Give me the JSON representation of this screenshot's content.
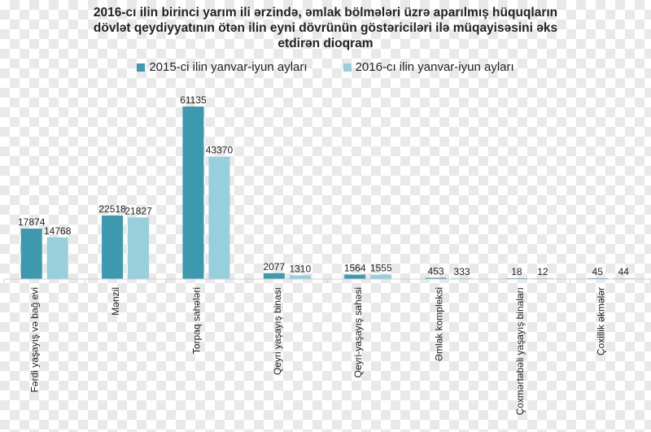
{
  "title_lines": [
    "2016-cı ilin birinci yarım ili ərzində, əmlak bölmələri üzrə aparılmış hüquqların",
    "dövlət qeydiyyatının ötən ilin eyni dövrünün göstəriciləri ilə müqayisəsini əks",
    "etdirən dioqram"
  ],
  "chart_data": {
    "type": "bar",
    "title": "2016-cı ilin birinci yarım ili ərzində, əmlak bölmələri üzrə aparılmış hüquqların dövlət qeydiyyatının ötən ilin eyni dövrünün göstəriciləri ilə müqayisəsini əks etdirən dioqram",
    "categories": [
      "Fərdi yaşayış və bağ evi",
      "Mənzil",
      "Torpaq sahələri",
      "Qeyri yaşayış binası",
      "Qeyri-yaşayış sahəsi",
      "Əmlak kompleksi",
      "Çoxmərtəbəli yaşayış binaları",
      "Çoxillik əkmələr"
    ],
    "series": [
      {
        "name": "2015-ci ilin yanvar-iyun ayları",
        "color": "#3d9aae",
        "values": [
          17874,
          22518,
          61135,
          2077,
          1564,
          453,
          18,
          45
        ]
      },
      {
        "name": "2016-cı ilin yanvar-iyun ayları",
        "color": "#98cfdc",
        "values": [
          14768,
          21827,
          43370,
          1310,
          1555,
          333,
          12,
          44
        ]
      }
    ],
    "data_labels": [
      [
        "17874",
        "22518",
        "61135",
        "2077",
        "1564",
        "453",
        "18",
        "45"
      ],
      [
        "14768",
        "21827",
        "43370",
        "1310",
        "1555",
        "333",
        "12",
        "44"
      ]
    ],
    "ylim": [
      0,
      64000
    ],
    "grid": false,
    "legend_position": "top"
  }
}
